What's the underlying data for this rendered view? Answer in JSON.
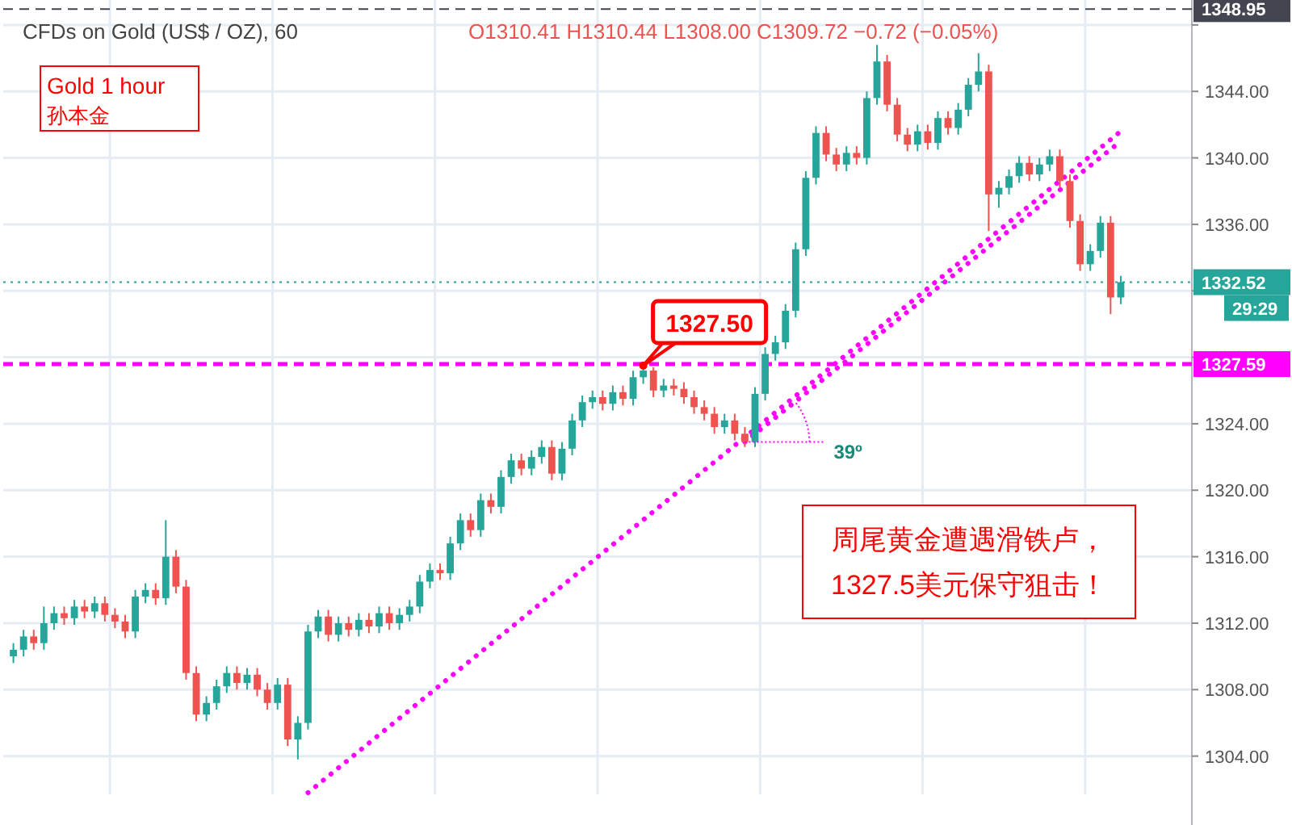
{
  "chart_data": {
    "type": "candlestick",
    "title": "CFDs on Gold (US$ / OZ), 60",
    "subtitle": "O1310.41 H1310.44 L1308.00 C1309.72 −0.72 (−0.05%)",
    "categories": [
      null,
      null,
      null,
      null,
      null,
      null,
      null,
      null,
      null,
      null,
      null,
      null,
      null,
      null,
      null,
      null,
      null,
      null,
      null,
      null,
      null,
      null,
      null,
      null,
      null,
      null,
      null,
      null,
      null,
      null,
      null,
      null,
      null,
      null,
      null,
      null,
      null,
      null,
      null,
      null,
      null,
      null,
      null,
      null,
      null,
      null,
      null,
      null,
      null,
      null,
      null,
      null,
      null,
      null,
      null,
      null,
      null,
      null,
      null,
      null,
      null,
      null,
      null,
      null,
      null,
      null,
      null,
      null,
      null,
      null,
      null,
      null,
      null,
      null,
      null,
      null,
      null,
      null,
      null,
      null,
      null,
      null,
      null,
      null,
      null,
      null,
      null,
      null,
      null,
      null,
      null,
      null,
      null,
      null,
      null,
      null,
      null,
      null,
      null,
      null,
      null,
      null,
      null,
      null,
      null,
      null,
      null,
      null,
      null,
      null
    ],
    "ohlc": [
      [
        1310.0,
        1310.8,
        1309.6,
        1310.4
      ],
      [
        1310.4,
        1311.6,
        1310.0,
        1311.2
      ],
      [
        1311.2,
        1311.6,
        1310.4,
        1310.8
      ],
      [
        1310.8,
        1313.0,
        1310.4,
        1312.0
      ],
      [
        1312.0,
        1313.0,
        1311.6,
        1312.6
      ],
      [
        1312.6,
        1313.0,
        1311.9,
        1312.3
      ],
      [
        1312.3,
        1313.4,
        1311.9,
        1313.0
      ],
      [
        1313.0,
        1313.4,
        1312.3,
        1312.7
      ],
      [
        1312.7,
        1313.6,
        1312.3,
        1313.2
      ],
      [
        1313.2,
        1313.6,
        1312.1,
        1312.5
      ],
      [
        1312.5,
        1312.9,
        1311.7,
        1312.1
      ],
      [
        1312.1,
        1312.5,
        1311.1,
        1311.5
      ],
      [
        1311.5,
        1314.0,
        1311.1,
        1313.6
      ],
      [
        1313.6,
        1314.4,
        1313.2,
        1314.0
      ],
      [
        1314.0,
        1314.4,
        1313.1,
        1313.5
      ],
      [
        1313.5,
        1318.2,
        1313.1,
        1316.0
      ],
      [
        1316.0,
        1316.4,
        1313.8,
        1314.2
      ],
      [
        1314.2,
        1314.6,
        1308.6,
        1309.0
      ],
      [
        1309.0,
        1309.4,
        1306.1,
        1306.5
      ],
      [
        1306.5,
        1307.6,
        1306.1,
        1307.2
      ],
      [
        1307.2,
        1308.6,
        1306.8,
        1308.2
      ],
      [
        1308.2,
        1309.4,
        1307.8,
        1309.0
      ],
      [
        1309.0,
        1309.4,
        1308.0,
        1308.4
      ],
      [
        1308.4,
        1309.3,
        1308.0,
        1308.9
      ],
      [
        1308.9,
        1309.3,
        1307.6,
        1308.0
      ],
      [
        1308.0,
        1308.4,
        1306.8,
        1307.2
      ],
      [
        1307.2,
        1308.7,
        1306.8,
        1308.3
      ],
      [
        1308.3,
        1308.7,
        1304.6,
        1305.0
      ],
      [
        1305.0,
        1306.4,
        1303.8,
        1306.0
      ],
      [
        1306.0,
        1311.9,
        1305.6,
        1311.5
      ],
      [
        1311.5,
        1312.8,
        1311.1,
        1312.4
      ],
      [
        1312.4,
        1312.8,
        1310.9,
        1311.3
      ],
      [
        1311.3,
        1312.4,
        1310.9,
        1312.0
      ],
      [
        1312.0,
        1312.4,
        1311.2,
        1311.6
      ],
      [
        1311.6,
        1312.6,
        1311.2,
        1312.2
      ],
      [
        1312.2,
        1312.6,
        1311.4,
        1311.8
      ],
      [
        1311.8,
        1313.0,
        1311.4,
        1312.6
      ],
      [
        1312.6,
        1313.0,
        1311.6,
        1312.0
      ],
      [
        1312.0,
        1312.9,
        1311.6,
        1312.5
      ],
      [
        1312.5,
        1313.4,
        1312.1,
        1313.0
      ],
      [
        1313.0,
        1314.9,
        1312.6,
        1314.5
      ],
      [
        1314.5,
        1315.6,
        1314.1,
        1315.2
      ],
      [
        1315.2,
        1315.6,
        1314.6,
        1315.0
      ],
      [
        1315.0,
        1317.2,
        1314.6,
        1316.8
      ],
      [
        1316.8,
        1318.6,
        1316.4,
        1318.2
      ],
      [
        1318.2,
        1318.6,
        1317.2,
        1317.6
      ],
      [
        1317.6,
        1319.8,
        1317.2,
        1319.4
      ],
      [
        1319.4,
        1319.8,
        1318.6,
        1319.0
      ],
      [
        1319.0,
        1321.2,
        1318.6,
        1320.8
      ],
      [
        1320.8,
        1322.2,
        1320.4,
        1321.8
      ],
      [
        1321.8,
        1322.2,
        1320.9,
        1321.3
      ],
      [
        1321.3,
        1322.4,
        1320.9,
        1322.0
      ],
      [
        1322.0,
        1323.0,
        1321.6,
        1322.6
      ],
      [
        1322.6,
        1323.0,
        1320.6,
        1321.0
      ],
      [
        1321.0,
        1322.9,
        1320.6,
        1322.5
      ],
      [
        1322.5,
        1324.6,
        1322.1,
        1324.2
      ],
      [
        1324.2,
        1325.7,
        1323.8,
        1325.3
      ],
      [
        1325.3,
        1326.0,
        1324.9,
        1325.6
      ],
      [
        1325.6,
        1326.0,
        1324.8,
        1325.2
      ],
      [
        1325.2,
        1326.3,
        1324.8,
        1325.9
      ],
      [
        1325.9,
        1326.3,
        1325.1,
        1325.5
      ],
      [
        1325.5,
        1327.2,
        1325.1,
        1326.8
      ],
      [
        1326.8,
        1327.5,
        1326.4,
        1327.2
      ],
      [
        1327.2,
        1327.4,
        1325.6,
        1326.0
      ],
      [
        1326.0,
        1326.7,
        1325.6,
        1326.3
      ],
      [
        1326.3,
        1326.7,
        1325.7,
        1326.1
      ],
      [
        1326.1,
        1326.5,
        1325.2,
        1325.6
      ],
      [
        1325.6,
        1326.0,
        1324.6,
        1325.0
      ],
      [
        1325.0,
        1325.4,
        1324.2,
        1324.6
      ],
      [
        1324.6,
        1325.0,
        1323.4,
        1323.8
      ],
      [
        1323.8,
        1324.6,
        1323.4,
        1324.2
      ],
      [
        1324.2,
        1324.6,
        1323.0,
        1323.4
      ],
      [
        1323.4,
        1323.8,
        1322.6,
        1322.9
      ],
      [
        1322.9,
        1326.2,
        1322.6,
        1325.8
      ],
      [
        1325.8,
        1328.6,
        1325.4,
        1328.2
      ],
      [
        1328.2,
        1329.3,
        1327.8,
        1328.9
      ],
      [
        1328.9,
        1331.2,
        1328.5,
        1330.8
      ],
      [
        1330.8,
        1334.9,
        1330.4,
        1334.5
      ],
      [
        1334.5,
        1339.2,
        1334.1,
        1338.8
      ],
      [
        1338.8,
        1341.9,
        1338.4,
        1341.5
      ],
      [
        1341.5,
        1341.9,
        1339.8,
        1340.2
      ],
      [
        1340.2,
        1340.6,
        1339.2,
        1339.6
      ],
      [
        1339.6,
        1340.7,
        1339.2,
        1340.3
      ],
      [
        1340.3,
        1340.7,
        1339.6,
        1340.0
      ],
      [
        1340.0,
        1344.0,
        1339.6,
        1343.6
      ],
      [
        1343.6,
        1346.8,
        1343.2,
        1345.8
      ],
      [
        1345.8,
        1346.2,
        1342.8,
        1343.2
      ],
      [
        1343.2,
        1343.6,
        1341.0,
        1341.4
      ],
      [
        1341.4,
        1341.8,
        1340.4,
        1340.8
      ],
      [
        1340.8,
        1342.0,
        1340.4,
        1341.6
      ],
      [
        1341.6,
        1342.0,
        1340.5,
        1340.9
      ],
      [
        1340.9,
        1342.8,
        1340.5,
        1342.4
      ],
      [
        1342.4,
        1342.8,
        1341.4,
        1341.8
      ],
      [
        1341.8,
        1343.3,
        1341.4,
        1342.9
      ],
      [
        1342.9,
        1344.8,
        1342.5,
        1344.4
      ],
      [
        1344.4,
        1346.3,
        1344.0,
        1345.2
      ],
      [
        1345.2,
        1345.6,
        1335.6,
        1337.8
      ],
      [
        1337.8,
        1338.6,
        1337.0,
        1338.2
      ],
      [
        1338.2,
        1339.3,
        1337.8,
        1338.9
      ],
      [
        1338.9,
        1340.1,
        1338.5,
        1339.7
      ],
      [
        1339.7,
        1340.1,
        1338.6,
        1339.0
      ],
      [
        1339.0,
        1340.0,
        1338.6,
        1339.6
      ],
      [
        1339.6,
        1340.5,
        1339.2,
        1340.1
      ],
      [
        1340.1,
        1340.5,
        1338.2,
        1338.6
      ],
      [
        1338.6,
        1339.0,
        1335.8,
        1336.2
      ],
      [
        1336.2,
        1336.6,
        1333.2,
        1333.6
      ],
      [
        1333.6,
        1334.8,
        1333.2,
        1334.4
      ],
      [
        1334.4,
        1336.5,
        1334.0,
        1336.1
      ],
      [
        1336.1,
        1336.5,
        1330.6,
        1331.6
      ],
      [
        1331.6,
        1332.9,
        1331.2,
        1332.52
      ]
    ],
    "colors": [
      "#26a69a",
      "#26a69a",
      "#ef5350",
      "#26a69a",
      "#26a69a",
      "#ef5350",
      "#26a69a",
      "#ef5350",
      "#26a69a",
      "#ef5350",
      "#ef5350",
      "#ef5350",
      "#26a69a",
      "#26a69a",
      "#ef5350",
      "#26a69a",
      "#ef5350",
      "#ef5350",
      "#ef5350",
      "#26a69a",
      "#26a69a",
      "#26a69a",
      "#ef5350",
      "#26a69a",
      "#ef5350",
      "#ef5350",
      "#26a69a",
      "#ef5350",
      "#26a69a",
      "#26a69a",
      "#26a69a",
      "#ef5350",
      "#26a69a",
      "#ef5350",
      "#26a69a",
      "#ef5350",
      "#26a69a",
      "#ef5350",
      "#26a69a",
      "#26a69a",
      "#26a69a",
      "#26a69a",
      "#ef5350",
      "#26a69a",
      "#26a69a",
      "#ef5350",
      "#26a69a",
      "#ef5350",
      "#26a69a",
      "#26a69a",
      "#ef5350",
      "#26a69a",
      "#26a69a",
      "#ef5350",
      "#26a69a",
      "#26a69a",
      "#26a69a",
      "#26a69a",
      "#ef5350",
      "#26a69a",
      "#ef5350",
      "#26a69a",
      "#26a69a",
      "#ef5350",
      "#26a69a",
      "#ef5350",
      "#ef5350",
      "#ef5350",
      "#ef5350",
      "#ef5350",
      "#26a69a",
      "#ef5350",
      "#ef5350",
      "#26a69a",
      "#26a69a",
      "#26a69a",
      "#26a69a",
      "#26a69a",
      "#26a69a",
      "#26a69a",
      "#ef5350",
      "#ef5350",
      "#26a69a",
      "#ef5350",
      "#26a69a",
      "#26a69a",
      "#ef5350",
      "#ef5350",
      "#ef5350",
      "#26a69a",
      "#ef5350",
      "#26a69a",
      "#ef5350",
      "#26a69a",
      "#26a69a",
      "#26a69a",
      "#ef5350",
      "#26a69a",
      "#26a69a",
      "#26a69a",
      "#ef5350",
      "#26a69a",
      "#26a69a",
      "#ef5350",
      "#ef5350",
      "#ef5350",
      "#26a69a",
      "#26a69a",
      "#ef5350",
      "#26a69a"
    ],
    "series": [
      {
        "type": "line",
        "color": "#ff00ff",
        "line_style": "dotted",
        "values": [
          null,
          null,
          null,
          null,
          null,
          null,
          null,
          null,
          null,
          null,
          null,
          null,
          null,
          null,
          null,
          null,
          null,
          null,
          null,
          null,
          null,
          null,
          null,
          null,
          null,
          null,
          null,
          null,
          null,
          1301.8,
          null,
          null,
          null,
          null,
          null,
          null,
          null,
          null,
          null,
          null,
          null,
          null,
          null,
          null,
          null,
          null,
          null,
          null,
          null,
          null,
          null,
          null,
          null,
          null,
          null,
          null,
          null,
          null,
          null,
          null,
          null,
          null,
          null,
          null,
          null,
          null,
          null,
          null,
          null,
          null,
          null,
          null,
          null,
          null,
          null,
          null,
          null,
          null,
          null,
          null,
          null,
          null,
          null,
          null,
          null,
          null,
          null,
          null,
          null,
          null,
          null,
          null,
          null,
          null,
          null,
          null,
          null,
          null,
          null,
          null,
          null,
          null,
          null,
          null,
          null,
          null,
          null,
          null,
          null,
          1341.6
        ]
      },
      {
        "type": "line",
        "color": "#ff00ff",
        "line_style": "dotted",
        "values": [
          null,
          null,
          null,
          null,
          null,
          null,
          null,
          null,
          null,
          null,
          null,
          null,
          null,
          null,
          null,
          null,
          null,
          null,
          null,
          null,
          null,
          null,
          null,
          null,
          null,
          null,
          null,
          null,
          null,
          null,
          null,
          null,
          null,
          null,
          null,
          null,
          null,
          null,
          null,
          null,
          null,
          null,
          null,
          null,
          null,
          null,
          null,
          null,
          null,
          null,
          null,
          null,
          null,
          null,
          null,
          null,
          null,
          null,
          null,
          null,
          null,
          null,
          null,
          null,
          null,
          null,
          null,
          null,
          null,
          null,
          null,
          null,
          1322.9,
          null,
          null,
          null,
          null,
          null,
          null,
          null,
          null,
          null,
          null,
          null,
          null,
          null,
          null,
          null,
          null,
          null,
          null,
          null,
          null,
          null,
          null,
          null,
          null,
          null,
          null,
          null,
          null,
          null,
          null,
          null,
          null,
          null,
          null,
          null,
          null,
          1341.0
        ]
      }
    ],
    "ylim": [
      1301.7,
      1349.5
    ],
    "yticks": [
      {
        "value": 1304,
        "label": "1304.00"
      },
      {
        "value": 1308,
        "label": "1308.00"
      },
      {
        "value": 1312,
        "label": "1312.00"
      },
      {
        "value": 1316,
        "label": "1316.00"
      },
      {
        "value": 1320,
        "label": "1320.00"
      },
      {
        "value": 1324,
        "label": "1324.00"
      },
      {
        "value": 1328,
        "label": null
      },
      {
        "value": 1332,
        "label": null
      },
      {
        "value": 1336,
        "label": "1336.00"
      },
      {
        "value": 1340,
        "label": "1340.00"
      },
      {
        "value": 1344,
        "label": "1344.00"
      },
      {
        "value": 1348,
        "label": null
      }
    ],
    "tick_labels": "y",
    "grid": true,
    "ref_lines": [
      {
        "axis": "y",
        "value": 1348.95,
        "label": "1348.95",
        "color": "#434651",
        "line_style": "dashed"
      },
      {
        "axis": "y",
        "value": 1332.52,
        "label": "1332.52",
        "color": "#26a69a",
        "line_style": "dotted"
      },
      {
        "axis": "y",
        "value": 1327.59,
        "label": "1327.59",
        "color": "#ff00ff",
        "line_style": "dashed"
      }
    ],
    "annotations": [
      "Gold 1 hour",
      "孙本金",
      {
        "text": "1327.50",
        "y": 1327.5
      },
      "39º",
      "周尾黄金遭遇滑铁卢，",
      "1327.5美元保守狙击！",
      "29:29"
    ]
  }
}
